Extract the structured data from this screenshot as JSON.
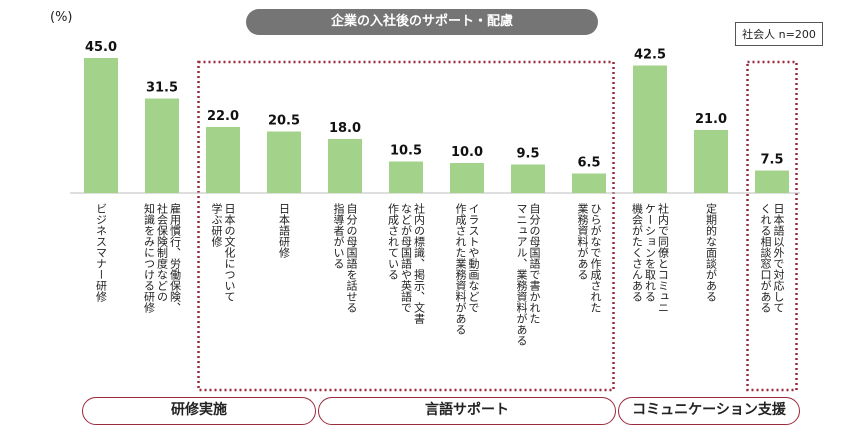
{
  "title": "企業の入社後のサポート・配慮",
  "unit_label": "(%)",
  "sample_label": "社会人 n=200",
  "colors": {
    "bar": "#a3d38a",
    "title_bg": "#757575",
    "frame": "#9b2a3c"
  },
  "chart_data": {
    "type": "bar",
    "ylim": [
      0,
      50
    ],
    "grid": false,
    "categories": [
      "ビジネスマナー研修",
      "雇用慣行、労働保険、社会保険制度などの知識をみにつける研修",
      "日本の文化について学ぶ研修",
      "日本語研修",
      "自分の母国語を話せる指導者がいる",
      "社内の標識、掲示、文書などが母国語や英語で作成されている",
      "イラストや動画などで作成された業務資料がある",
      "自分の母国語で書かれたマニュアル、業務資料がある",
      "ひらがなで作成された業務資料がある",
      "社内で同僚とコミュニケーションを取れる機会がたくさんある",
      "定期的な面談がある",
      "日本語以外で対応してくれる相談窓口がある"
    ],
    "category_lines": [
      [
        "ビジネスマナー研修"
      ],
      [
        "雇用慣行、労働保険、",
        "社会保険制度などの",
        "知識をみにつける研修"
      ],
      [
        "日本の文化について",
        "学ぶ研修"
      ],
      [
        "日本語研修"
      ],
      [
        "自分の母国語を話せる",
        "指導者がいる"
      ],
      [
        "社内の標識、掲示、文書",
        "などが母国語や英語で",
        "作成されている"
      ],
      [
        "イラストや動画などで",
        "作成された業務資料がある"
      ],
      [
        "自分の母国語で書かれた",
        "マニュアル、業務資料がある"
      ],
      [
        "ひらがなで作成された",
        "業務資料がある"
      ],
      [
        "社内で同僚とコミュニ",
        "ケーションを取れる",
        "機会がたくさんある"
      ],
      [
        "定期的な面談がある"
      ],
      [
        "日本語以外で対応して",
        "くれる相談窓口がある"
      ]
    ],
    "values": [
      45.0,
      31.5,
      22.0,
      20.5,
      18.0,
      10.5,
      10.0,
      9.5,
      6.5,
      42.5,
      21.0,
      7.5
    ],
    "value_labels": [
      "45.0",
      "31.5",
      "22.0",
      "20.5",
      "18.0",
      "10.5",
      "10.0",
      "9.5",
      "6.5",
      "42.5",
      "21.0",
      "7.5"
    ],
    "groups": [
      {
        "label": "研修実施",
        "start": 0,
        "end": 3
      },
      {
        "label": "言語サポート",
        "start": 4,
        "end": 8
      },
      {
        "label": "コミュニケーション支援",
        "start": 9,
        "end": 11
      }
    ],
    "highlighted_ranges": [
      [
        2,
        8
      ],
      [
        11,
        11
      ]
    ]
  }
}
